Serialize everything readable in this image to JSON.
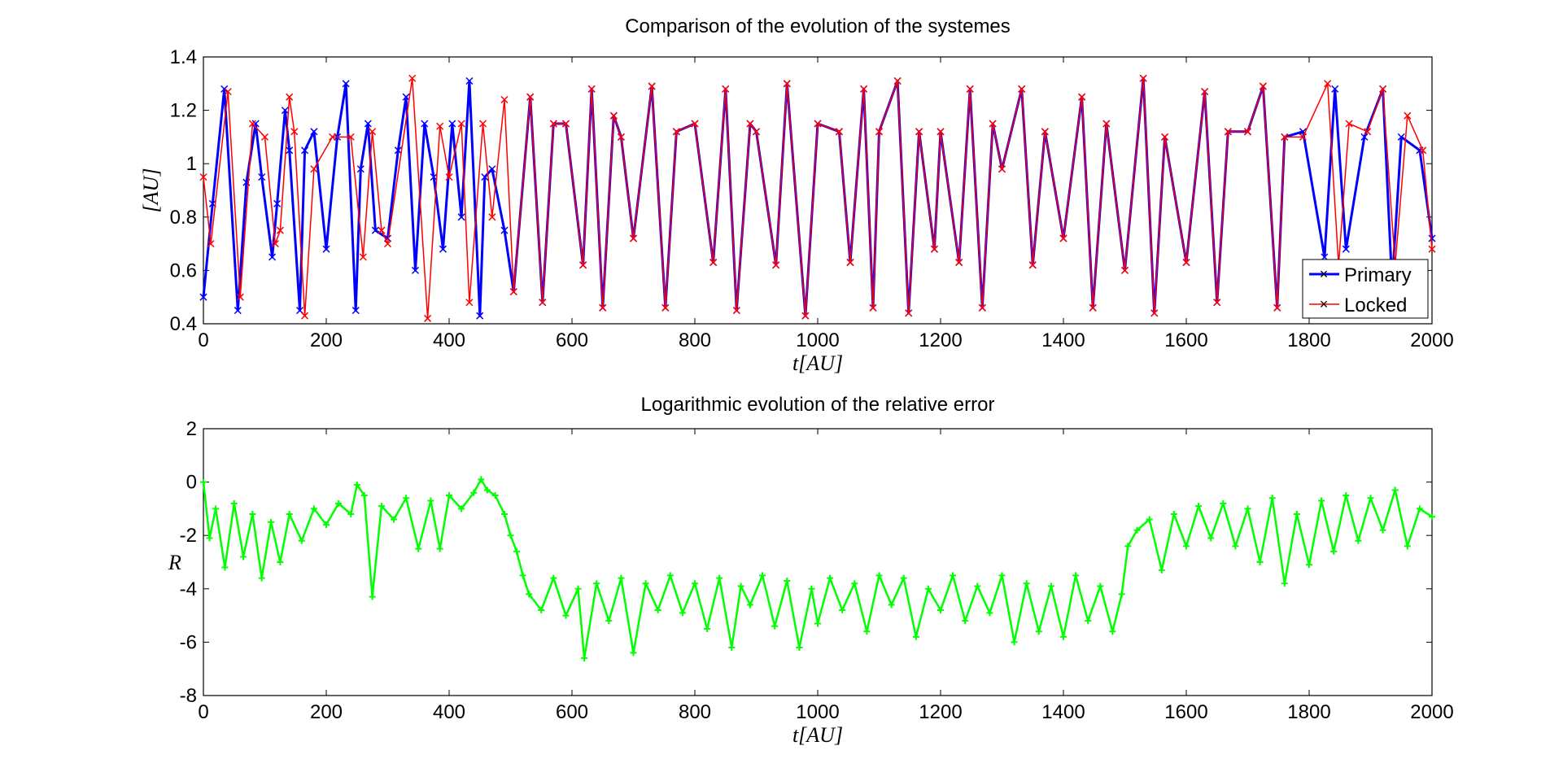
{
  "colors": {
    "primary": "#0000ff",
    "locked": "#ff0000",
    "error": "#00ff00",
    "axes": "#000000",
    "background": "#ffffff"
  },
  "chart_data": [
    {
      "type": "line",
      "title": "Comparison of the evolution of the systemes",
      "xlabel": "t[AU]",
      "ylabel": "[AU]",
      "xlim": [
        0,
        2000
      ],
      "ylim": [
        0.4,
        1.4
      ],
      "xticks": [
        0,
        200,
        400,
        600,
        800,
        1000,
        1200,
        1400,
        1600,
        1800,
        2000
      ],
      "yticks": [
        0.4,
        0.6,
        0.8,
        1,
        1.2,
        1.4
      ],
      "xtick_labels": [
        "0",
        "200",
        "400",
        "600",
        "800",
        "1000",
        "1200",
        "1400",
        "1600",
        "1800",
        "2000"
      ],
      "ytick_labels": [
        "0.4",
        "0.6",
        "0.8",
        "1",
        "1.2",
        "1.4"
      ],
      "grid": false,
      "legend": "bottom-right",
      "series": [
        {
          "name": "Primary",
          "color": "#0000ff",
          "marker": "x",
          "x": [
            0,
            15,
            34,
            56,
            70,
            85,
            95,
            112,
            120,
            133,
            140,
            157,
            165,
            180,
            200,
            218,
            232,
            248,
            256,
            268,
            280,
            300,
            317,
            330,
            345,
            360,
            375,
            390,
            405,
            420,
            433,
            450,
            458,
            470,
            490,
            505,
            532,
            552,
            570,
            590,
            618,
            632,
            650,
            668,
            680,
            700,
            730,
            752,
            770,
            800,
            830,
            850,
            868,
            890,
            900,
            932,
            950,
            980,
            1000,
            1035,
            1053,
            1075,
            1090,
            1100,
            1130,
            1148,
            1165,
            1190,
            1200,
            1230,
            1248,
            1268,
            1285,
            1300,
            1332,
            1350,
            1370,
            1400,
            1430,
            1448,
            1470,
            1500,
            1530,
            1548,
            1565,
            1600,
            1630,
            1650,
            1668,
            1700,
            1725,
            1748,
            1760,
            1790,
            1825,
            1842,
            1860,
            1890,
            1920,
            1935,
            1950,
            1980,
            2000
          ],
          "y": [
            0.5,
            0.85,
            1.28,
            0.45,
            0.93,
            1.15,
            0.95,
            0.65,
            0.85,
            1.2,
            1.05,
            0.45,
            1.05,
            1.12,
            0.68,
            1.1,
            1.3,
            0.45,
            0.98,
            1.15,
            0.75,
            0.72,
            1.05,
            1.25,
            0.6,
            1.15,
            0.95,
            0.68,
            1.15,
            0.8,
            1.31,
            0.43,
            0.95,
            0.98,
            0.75,
            0.52,
            1.25,
            0.48,
            1.15,
            1.15,
            0.62,
            1.28,
            0.46,
            1.18,
            1.1,
            0.72,
            1.29,
            0.46,
            1.12,
            1.15,
            0.63,
            1.28,
            0.45,
            1.15,
            1.12,
            0.62,
            1.3,
            0.43,
            1.15,
            1.12,
            0.63,
            1.28,
            0.46,
            1.12,
            1.31,
            0.44,
            1.12,
            0.68,
            1.12,
            0.63,
            1.28,
            0.46,
            1.15,
            0.98,
            1.28,
            0.62,
            1.12,
            0.72,
            1.25,
            0.46,
            1.15,
            0.6,
            1.32,
            0.44,
            1.1,
            0.63,
            1.27,
            0.48,
            1.12,
            1.12,
            1.29,
            0.46,
            1.1,
            1.12,
            0.65,
            1.28,
            0.68,
            1.1,
            1.28,
            0.55,
            1.1,
            1.05,
            0.72
          ]
        },
        {
          "name": "Locked",
          "color": "#ff0000",
          "marker": "x",
          "x": [
            0,
            12,
            40,
            60,
            80,
            100,
            117,
            125,
            140,
            148,
            165,
            180,
            210,
            240,
            260,
            275,
            290,
            300,
            340,
            365,
            385,
            400,
            420,
            433,
            455,
            470,
            490,
            505,
            532,
            552,
            570,
            590,
            618,
            632,
            650,
            668,
            680,
            700,
            730,
            752,
            770,
            800,
            830,
            850,
            868,
            890,
            900,
            932,
            950,
            980,
            1000,
            1035,
            1053,
            1075,
            1090,
            1100,
            1130,
            1148,
            1165,
            1190,
            1200,
            1230,
            1248,
            1268,
            1285,
            1300,
            1332,
            1350,
            1370,
            1400,
            1430,
            1448,
            1470,
            1500,
            1530,
            1548,
            1565,
            1600,
            1630,
            1650,
            1668,
            1700,
            1725,
            1748,
            1760,
            1790,
            1830,
            1848,
            1865,
            1895,
            1920,
            1940,
            1960,
            1985,
            2000
          ],
          "y": [
            0.95,
            0.7,
            1.27,
            0.5,
            1.15,
            1.1,
            0.7,
            0.75,
            1.25,
            1.12,
            0.43,
            0.98,
            1.1,
            1.1,
            0.65,
            1.12,
            0.75,
            0.7,
            1.32,
            0.42,
            1.14,
            0.95,
            1.15,
            0.48,
            1.15,
            0.8,
            1.24,
            0.52,
            1.25,
            0.48,
            1.15,
            1.15,
            0.62,
            1.28,
            0.46,
            1.18,
            1.1,
            0.72,
            1.29,
            0.46,
            1.12,
            1.15,
            0.63,
            1.28,
            0.45,
            1.15,
            1.12,
            0.62,
            1.3,
            0.43,
            1.15,
            1.12,
            0.63,
            1.28,
            0.46,
            1.12,
            1.31,
            0.44,
            1.12,
            0.68,
            1.12,
            0.63,
            1.28,
            0.46,
            1.15,
            0.98,
            1.28,
            0.62,
            1.12,
            0.72,
            1.25,
            0.46,
            1.15,
            0.6,
            1.32,
            0.44,
            1.1,
            0.63,
            1.27,
            0.48,
            1.12,
            1.12,
            1.29,
            0.46,
            1.1,
            1.1,
            1.3,
            0.62,
            1.15,
            1.12,
            1.28,
            0.62,
            1.18,
            1.05,
            0.68
          ]
        }
      ]
    },
    {
      "type": "line",
      "title": "Logarithmic evolution of the relative error",
      "xlabel": "t[AU]",
      "ylabel": "R",
      "xlim": [
        0,
        2000
      ],
      "ylim": [
        -8,
        2
      ],
      "xticks": [
        0,
        200,
        400,
        600,
        800,
        1000,
        1200,
        1400,
        1600,
        1800,
        2000
      ],
      "yticks": [
        -8,
        -6,
        -4,
        -2,
        0,
        2
      ],
      "xtick_labels": [
        "0",
        "200",
        "400",
        "600",
        "800",
        "1000",
        "1200",
        "1400",
        "1600",
        "1800",
        "2000"
      ],
      "ytick_labels": [
        "-8",
        "-6",
        "-4",
        "-2",
        "0",
        "2"
      ],
      "grid": false,
      "series": [
        {
          "color": "#00ff00",
          "marker": "+",
          "x": [
            0,
            10,
            20,
            35,
            50,
            65,
            80,
            95,
            110,
            125,
            140,
            160,
            180,
            200,
            220,
            240,
            250,
            262,
            275,
            290,
            310,
            330,
            350,
            370,
            385,
            400,
            420,
            440,
            452,
            462,
            475,
            490,
            500,
            510,
            520,
            530,
            550,
            570,
            590,
            610,
            620,
            640,
            660,
            680,
            700,
            720,
            740,
            760,
            780,
            800,
            820,
            840,
            860,
            875,
            890,
            910,
            930,
            950,
            970,
            990,
            1000,
            1020,
            1040,
            1060,
            1080,
            1100,
            1120,
            1140,
            1160,
            1180,
            1200,
            1220,
            1240,
            1260,
            1280,
            1300,
            1320,
            1340,
            1360,
            1380,
            1400,
            1420,
            1440,
            1460,
            1480,
            1495,
            1505,
            1520,
            1540,
            1560,
            1580,
            1600,
            1620,
            1640,
            1660,
            1680,
            1700,
            1720,
            1740,
            1760,
            1780,
            1800,
            1820,
            1840,
            1860,
            1880,
            1900,
            1920,
            1940,
            1960,
            1980,
            2000
          ],
          "y": [
            0,
            -2.1,
            -1.0,
            -3.2,
            -0.8,
            -2.8,
            -1.2,
            -3.6,
            -1.5,
            -3.0,
            -1.2,
            -2.2,
            -1.0,
            -1.6,
            -0.8,
            -1.2,
            -0.1,
            -0.5,
            -4.3,
            -0.9,
            -1.4,
            -0.6,
            -2.5,
            -0.7,
            -2.5,
            -0.5,
            -1.0,
            -0.4,
            0.1,
            -0.3,
            -0.5,
            -1.2,
            -2.0,
            -2.6,
            -3.5,
            -4.2,
            -4.8,
            -3.6,
            -5.0,
            -4.0,
            -6.6,
            -3.8,
            -5.2,
            -3.6,
            -6.4,
            -3.8,
            -4.8,
            -3.5,
            -4.9,
            -3.8,
            -5.5,
            -3.6,
            -6.2,
            -3.9,
            -4.6,
            -3.5,
            -5.4,
            -3.7,
            -6.2,
            -4.0,
            -5.3,
            -3.6,
            -4.8,
            -3.8,
            -5.6,
            -3.5,
            -4.6,
            -3.6,
            -5.8,
            -4.0,
            -4.8,
            -3.5,
            -5.2,
            -3.9,
            -4.9,
            -3.5,
            -6.0,
            -3.8,
            -5.6,
            -3.9,
            -5.8,
            -3.5,
            -5.2,
            -3.9,
            -5.6,
            -4.2,
            -2.4,
            -1.8,
            -1.4,
            -3.3,
            -1.2,
            -2.4,
            -0.9,
            -2.1,
            -0.8,
            -2.4,
            -1.0,
            -3.0,
            -0.6,
            -3.8,
            -1.2,
            -3.1,
            -0.7,
            -2.6,
            -0.5,
            -2.2,
            -0.6,
            -1.8,
            -0.3,
            -2.4,
            -1.0,
            -1.3
          ]
        }
      ]
    }
  ]
}
